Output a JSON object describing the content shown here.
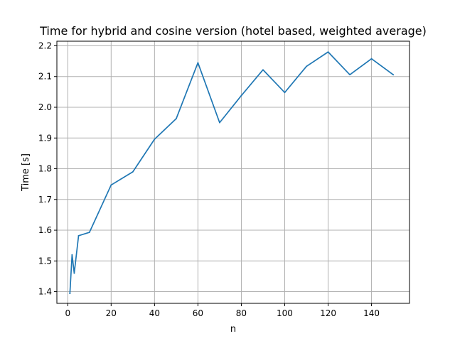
{
  "chart_data": {
    "type": "line",
    "title": "Time for hybrid and cosine version (hotel based, weighted average)",
    "xlabel": "n",
    "ylabel": "Time [s]",
    "xlim": [
      -5,
      157.5
    ],
    "ylim": [
      1.362,
      2.215
    ],
    "xticks": [
      0,
      20,
      40,
      60,
      80,
      100,
      120,
      140
    ],
    "yticks": [
      1.4,
      1.5,
      1.6,
      1.7,
      1.8,
      1.9,
      2.0,
      2.1,
      2.2
    ],
    "xtick_labels": [
      "0",
      "20",
      "40",
      "60",
      "80",
      "100",
      "120",
      "140"
    ],
    "ytick_labels": [
      "1.4",
      "1.5",
      "1.6",
      "1.7",
      "1.8",
      "1.9",
      "2.0",
      "2.1",
      "2.2"
    ],
    "grid": true,
    "series": [
      {
        "color": "#1f77b4",
        "x": [
          1,
          2,
          3,
          5,
          10,
          20,
          30,
          40,
          50,
          60,
          70,
          80,
          90,
          100,
          110,
          120,
          130,
          140,
          150
        ],
        "y": [
          1.394,
          1.52,
          1.46,
          1.582,
          1.593,
          1.747,
          1.79,
          1.896,
          1.963,
          2.145,
          1.95,
          2.038,
          2.122,
          2.048,
          2.133,
          2.18,
          2.106,
          2.158,
          2.106
        ]
      }
    ]
  }
}
